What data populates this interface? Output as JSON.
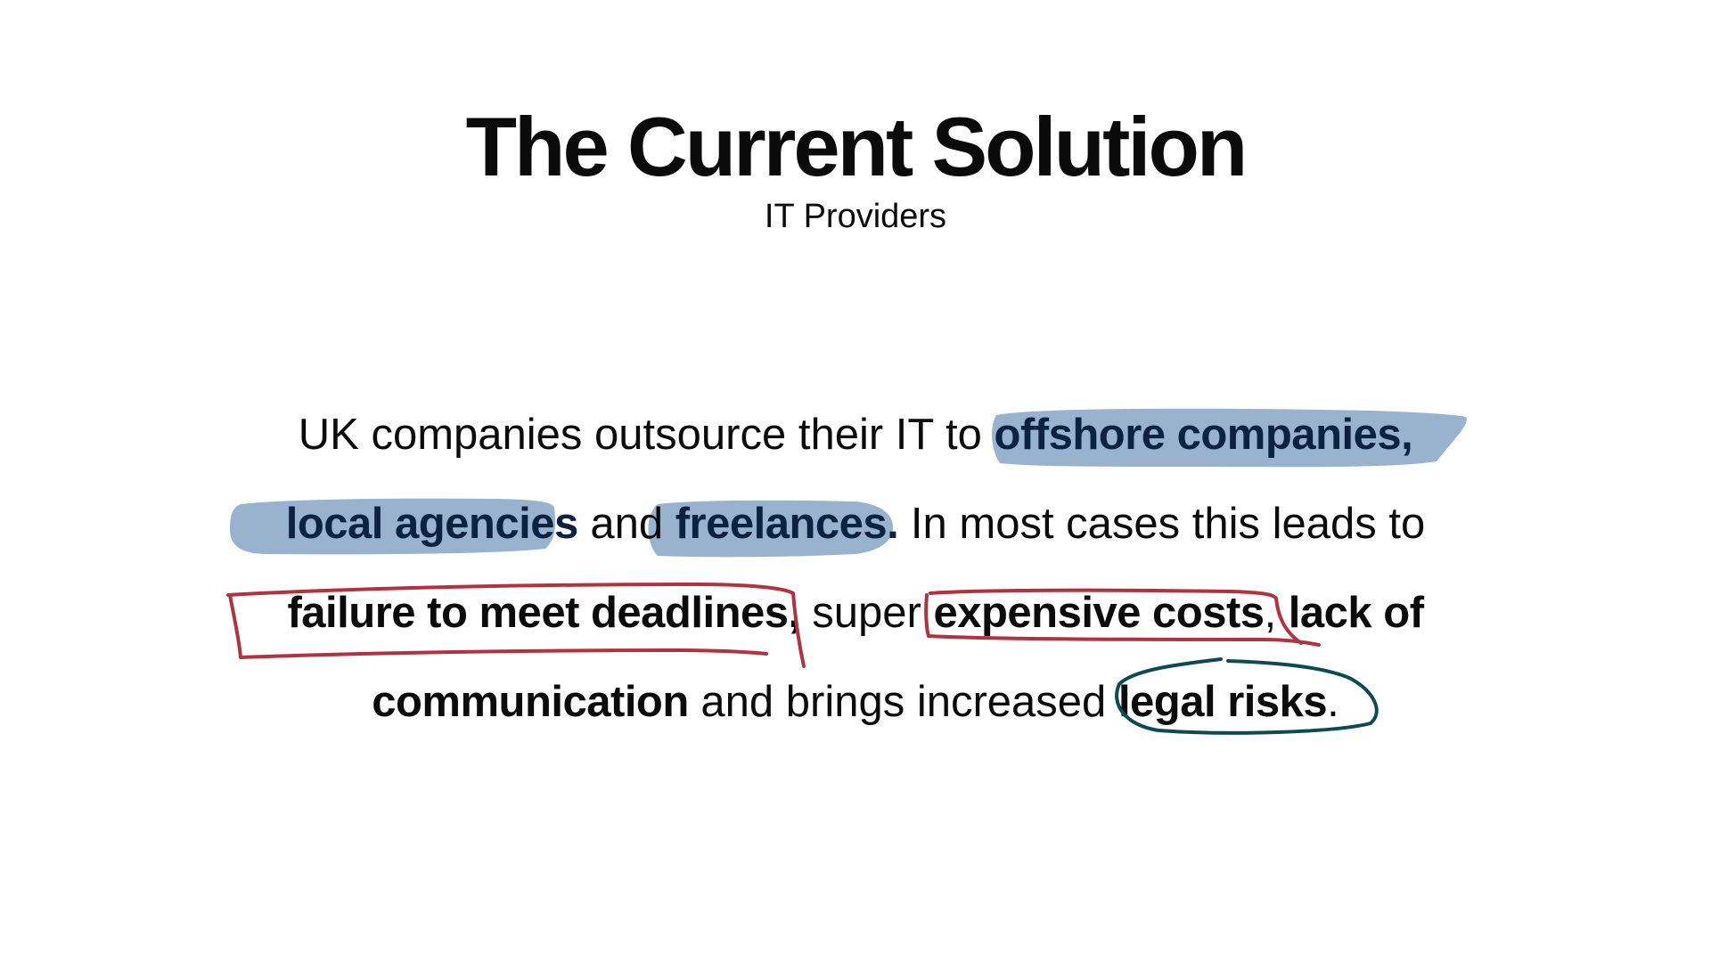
{
  "slide": {
    "title": "The Current Solution",
    "subtitle": "IT Providers"
  },
  "body": {
    "line1": {
      "plain": "UK companies outsource their IT to ",
      "highlight": "offshore companies,"
    },
    "line2": {
      "highlight_1": "local agencies",
      "plain_1": " and ",
      "highlight_2": "freelances.",
      "plain_2": " In most cases this leads to"
    },
    "line3": {
      "bold_1": "failure to meet deadlines,",
      "plain_1": " super ",
      "bold_2": "expensive costs",
      "plain_2": ", ",
      "bold_3": "lack of"
    },
    "line4": {
      "bold_1": "communication",
      "plain_1": " and brings increased ",
      "bold_2": "legal risks",
      "plain_2": "."
    }
  },
  "colors": {
    "highlight": "#93aecb",
    "box_stroke": "#b0333f",
    "circle_stroke": "#0f4a52",
    "text": "#0b0b0b"
  }
}
